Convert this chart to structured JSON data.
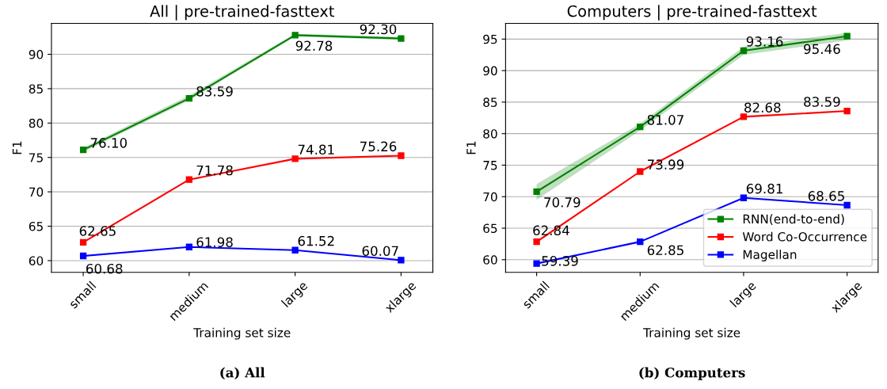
{
  "chart_data": [
    {
      "type": "line",
      "title": "All | pre-trained-fasttext",
      "xlabel": "Training set size",
      "ylabel": "F1",
      "categories": [
        "small",
        "medium",
        "large",
        "xlarge"
      ],
      "ylim": [
        58.3,
        94.5
      ],
      "yticks": [
        60,
        65,
        70,
        75,
        80,
        85,
        90
      ],
      "grid": "y",
      "marker": "square",
      "series": [
        {
          "color": "#008000",
          "values": [
            76.1,
            83.59,
            92.78,
            92.3
          ],
          "value_labels": [
            "76.10",
            "83.59",
            "92.78",
            "92.30"
          ],
          "lower": [
            75.8,
            83.3,
            92.6,
            92.1
          ],
          "upper": [
            76.4,
            84.0,
            93.0,
            92.5
          ]
        },
        {
          "color": "#ff0000",
          "values": [
            62.65,
            71.78,
            74.81,
            75.26
          ],
          "value_labels": [
            "62.65",
            "71.78",
            "74.81",
            "75.26"
          ]
        },
        {
          "color": "#0000ff",
          "values": [
            60.68,
            61.98,
            61.52,
            60.07
          ],
          "value_labels": [
            "60.68",
            "61.98",
            "61.52",
            "60.07"
          ]
        }
      ],
      "annotations": [
        "(a) All"
      ]
    },
    {
      "type": "line",
      "title": "Computers | pre-trained-fasttext",
      "xlabel": "Training set size",
      "ylabel": "F1",
      "categories": [
        "small",
        "medium",
        "large",
        "xlarge"
      ],
      "ylim": [
        58,
        97.5
      ],
      "yticks": [
        60,
        65,
        70,
        75,
        80,
        85,
        90,
        95
      ],
      "grid": "y",
      "marker": "square",
      "legend": "bottom right",
      "series": [
        {
          "name": "RNN(end-to-end)",
          "color": "#008000",
          "values": [
            70.79,
            81.07,
            93.16,
            95.46
          ],
          "value_labels": [
            "70.79",
            "81.07",
            "93.16",
            "95.46"
          ],
          "lower": [
            69.5,
            80.5,
            92.5,
            94.8
          ],
          "upper": [
            72.0,
            81.6,
            93.8,
            96.0
          ]
        },
        {
          "name": "Word Co-Occurrence",
          "color": "#ff0000",
          "values": [
            62.84,
            73.99,
            82.68,
            83.59
          ],
          "value_labels": [
            "62.84",
            "73.99",
            "82.68",
            "83.59"
          ]
        },
        {
          "name": "Magellan",
          "color": "#0000ff",
          "values": [
            59.39,
            62.85,
            69.81,
            68.65
          ],
          "value_labels": [
            "59.39",
            "62.85",
            "69.81",
            "68.65"
          ]
        }
      ],
      "annotations": [
        "(b) Computers"
      ]
    }
  ]
}
